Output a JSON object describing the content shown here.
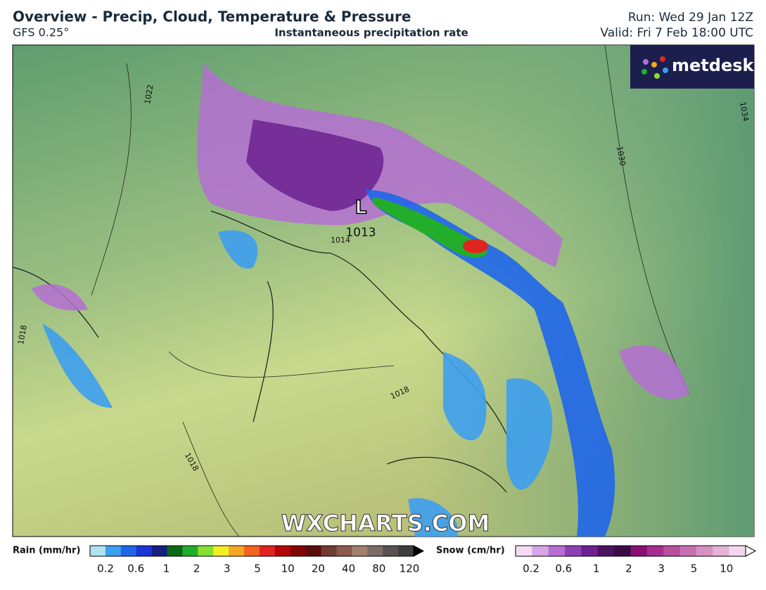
{
  "header": {
    "title": "Overview - Precip, Cloud, Temperature & Pressure",
    "model": "GFS 0.25°",
    "subtitle": "Instantaneous precipitation rate",
    "run": "Run: Wed 29 Jan 12Z",
    "valid": "Valid: Fri 7 Feb 18:00 UTC"
  },
  "logo": "metdesk",
  "watermark": "WXCHARTS.COM",
  "map": {
    "low_marker": "L",
    "low_pressure": "1013",
    "isobar_labels": [
      "1022",
      "1014",
      "1018",
      "1018",
      "1018",
      "1030",
      "1034"
    ]
  },
  "legends": [
    {
      "title": "Rain (mm/hr)",
      "ticks": [
        0.2,
        0.6,
        1,
        2,
        3,
        5,
        10,
        20,
        40,
        80,
        120
      ],
      "colors": [
        "#aee2ee",
        "#3d9ff0",
        "#1f66ea",
        "#1c35d4",
        "#16207e",
        "#0b6a18",
        "#22ae2a",
        "#86df33",
        "#f2ee22",
        "#f2a822",
        "#f2641f",
        "#e0251f",
        "#b40606",
        "#820404",
        "#5c0c0c",
        "#6e3c32",
        "#8a5a4c",
        "#a28070",
        "#7c6c64",
        "#5a5252",
        "#3e3e3e"
      ]
    },
    {
      "title": "Snow (cm/hr)",
      "ticks": [
        0.2,
        0.6,
        1,
        2,
        3,
        5,
        10
      ],
      "colors": [
        "#f3dcf3",
        "#d6a6e6",
        "#b56fd3",
        "#8f3fb6",
        "#6c2190",
        "#4c1260",
        "#3a0c44",
        "#8a1070",
        "#a52e8e",
        "#b8509e",
        "#c670b0",
        "#d690c2",
        "#e4b2d6",
        "#f3d8ec"
      ]
    }
  ]
}
